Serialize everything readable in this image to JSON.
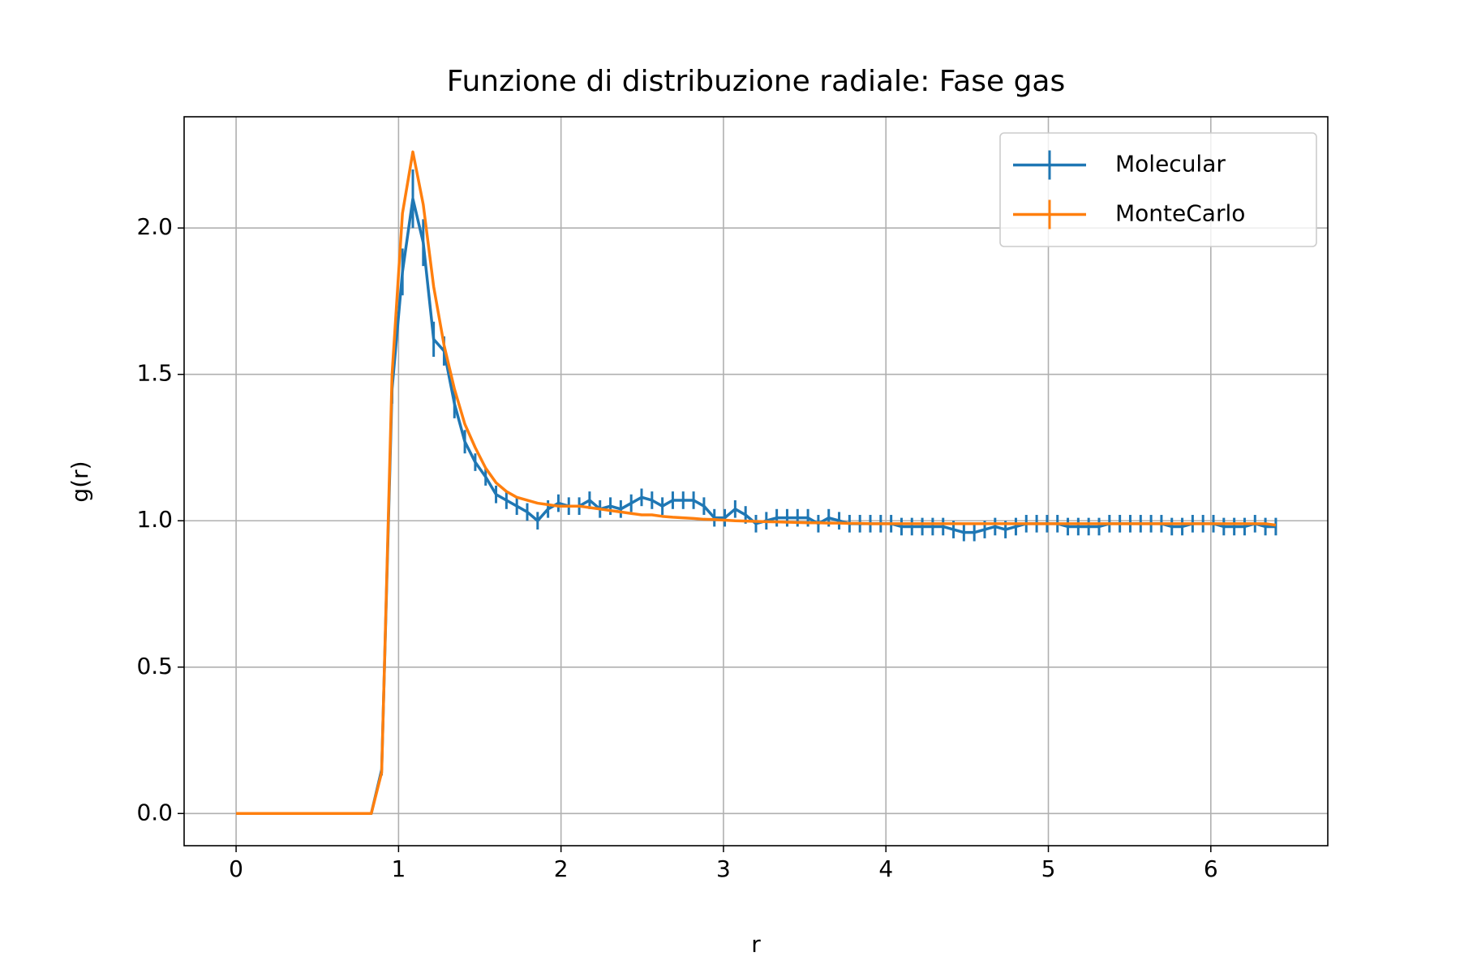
{
  "chart_data": {
    "type": "errorbar-line",
    "title": "Funzione di distribuzione radiale: Fase gas",
    "x_label": "r",
    "y_label": "g(r)",
    "x": [
      0,
      0.064,
      0.128,
      0.192,
      0.256,
      0.32,
      0.384,
      0.448,
      0.512,
      0.576,
      0.64,
      0.704,
      0.768,
      0.832,
      0.896,
      0.96,
      1.024,
      1.088,
      1.152,
      1.216,
      1.28,
      1.344,
      1.408,
      1.472,
      1.536,
      1.6,
      1.664,
      1.728,
      1.792,
      1.856,
      1.92,
      1.984,
      2.048,
      2.112,
      2.176,
      2.24,
      2.304,
      2.368,
      2.432,
      2.496,
      2.56,
      2.624,
      2.688,
      2.752,
      2.816,
      2.88,
      2.944,
      3.008,
      3.072,
      3.136,
      3.2,
      3.264,
      3.328,
      3.392,
      3.456,
      3.52,
      3.584,
      3.648,
      3.712,
      3.776,
      3.84,
      3.904,
      3.968,
      4.032,
      4.096,
      4.16,
      4.224,
      4.288,
      4.352,
      4.416,
      4.48,
      4.544,
      4.608,
      4.672,
      4.736,
      4.8,
      4.864,
      4.928,
      4.992,
      5.056,
      5.12,
      5.184,
      5.248,
      5.312,
      5.376,
      5.44,
      5.504,
      5.568,
      5.632,
      5.696,
      5.76,
      5.824,
      5.888,
      5.952,
      6.016,
      6.08,
      6.144,
      6.208,
      6.272,
      6.336,
      6.4
    ],
    "series": [
      {
        "name": "Molecular",
        "color": "#1f77b4",
        "values": [
          0,
          0,
          0,
          0,
          0,
          0,
          0,
          0,
          0,
          0,
          0,
          0,
          0,
          0,
          0.15,
          1.45,
          1.85,
          2.1,
          1.95,
          1.62,
          1.58,
          1.4,
          1.27,
          1.2,
          1.15,
          1.09,
          1.07,
          1.05,
          1.03,
          1.0,
          1.04,
          1.06,
          1.05,
          1.05,
          1.07,
          1.04,
          1.05,
          1.04,
          1.06,
          1.08,
          1.07,
          1.05,
          1.07,
          1.07,
          1.07,
          1.05,
          1.01,
          1.01,
          1.04,
          1.02,
          0.99,
          1.0,
          1.01,
          1.01,
          1.01,
          1.01,
          0.99,
          1.01,
          1.0,
          0.99,
          0.99,
          0.99,
          0.99,
          0.99,
          0.98,
          0.98,
          0.98,
          0.98,
          0.98,
          0.97,
          0.96,
          0.96,
          0.97,
          0.98,
          0.97,
          0.98,
          0.99,
          0.99,
          0.99,
          0.99,
          0.98,
          0.98,
          0.98,
          0.98,
          0.99,
          0.99,
          0.99,
          0.99,
          0.99,
          0.99,
          0.98,
          0.98,
          0.99,
          0.99,
          0.99,
          0.98,
          0.98,
          0.98,
          0.99,
          0.98,
          0.98
        ],
        "errors": [
          0,
          0,
          0,
          0,
          0,
          0,
          0,
          0,
          0,
          0,
          0,
          0,
          0,
          0,
          0.02,
          0.05,
          0.08,
          0.1,
          0.08,
          0.06,
          0.05,
          0.05,
          0.04,
          0.03,
          0.03,
          0.03,
          0.03,
          0.03,
          0.03,
          0.03,
          0.03,
          0.03,
          0.03,
          0.03,
          0.03,
          0.03,
          0.03,
          0.03,
          0.03,
          0.03,
          0.03,
          0.03,
          0.03,
          0.03,
          0.03,
          0.03,
          0.03,
          0.03,
          0.03,
          0.03,
          0.03,
          0.03,
          0.03,
          0.03,
          0.03,
          0.03,
          0.03,
          0.03,
          0.03,
          0.03,
          0.03,
          0.03,
          0.03,
          0.03,
          0.03,
          0.03,
          0.03,
          0.03,
          0.03,
          0.03,
          0.03,
          0.03,
          0.03,
          0.03,
          0.03,
          0.03,
          0.03,
          0.03,
          0.03,
          0.03,
          0.03,
          0.03,
          0.03,
          0.03,
          0.03,
          0.03,
          0.03,
          0.03,
          0.03,
          0.03,
          0.03,
          0.03,
          0.03,
          0.03,
          0.03,
          0.03,
          0.03,
          0.03,
          0.03,
          0.03,
          0.03
        ]
      },
      {
        "name": "MonteCarlo",
        "color": "#ff7f0e",
        "values": [
          0,
          0,
          0,
          0,
          0,
          0,
          0,
          0,
          0,
          0,
          0,
          0,
          0,
          0,
          0.14,
          1.5,
          2.05,
          2.26,
          2.08,
          1.8,
          1.6,
          1.45,
          1.33,
          1.25,
          1.18,
          1.13,
          1.1,
          1.08,
          1.07,
          1.06,
          1.055,
          1.05,
          1.05,
          1.05,
          1.045,
          1.04,
          1.035,
          1.03,
          1.025,
          1.02,
          1.02,
          1.015,
          1.012,
          1.01,
          1.008,
          1.005,
          1.004,
          1.002,
          1.0,
          0.999,
          0.998,
          0.997,
          0.996,
          0.995,
          0.994,
          0.993,
          0.993,
          0.992,
          0.992,
          0.991,
          0.991,
          0.99,
          0.99,
          0.99,
          0.99,
          0.99,
          0.99,
          0.99,
          0.99,
          0.99,
          0.99,
          0.99,
          0.99,
          0.99,
          0.99,
          0.99,
          0.99,
          0.99,
          0.99,
          0.99,
          0.99,
          0.99,
          0.99,
          0.99,
          0.99,
          0.99,
          0.99,
          0.99,
          0.99,
          0.99,
          0.99,
          0.99,
          0.99,
          0.99,
          0.99,
          0.99,
          0.99,
          0.99,
          0.99,
          0.99,
          0.985
        ]
      }
    ],
    "xlim": [
      -0.32,
      6.72
    ],
    "ylim": [
      -0.11,
      2.38
    ],
    "xticks": [
      0,
      1,
      2,
      3,
      4,
      5,
      6
    ],
    "yticks": [
      {
        "value": 0,
        "label": "0.0"
      },
      {
        "value": 0.5,
        "label": "0.5"
      },
      {
        "value": 1,
        "label": "1.0"
      },
      {
        "value": 1.5,
        "label": "1.5"
      },
      {
        "value": 2,
        "label": "2.0"
      }
    ],
    "grid": true,
    "legend": "upper right"
  }
}
